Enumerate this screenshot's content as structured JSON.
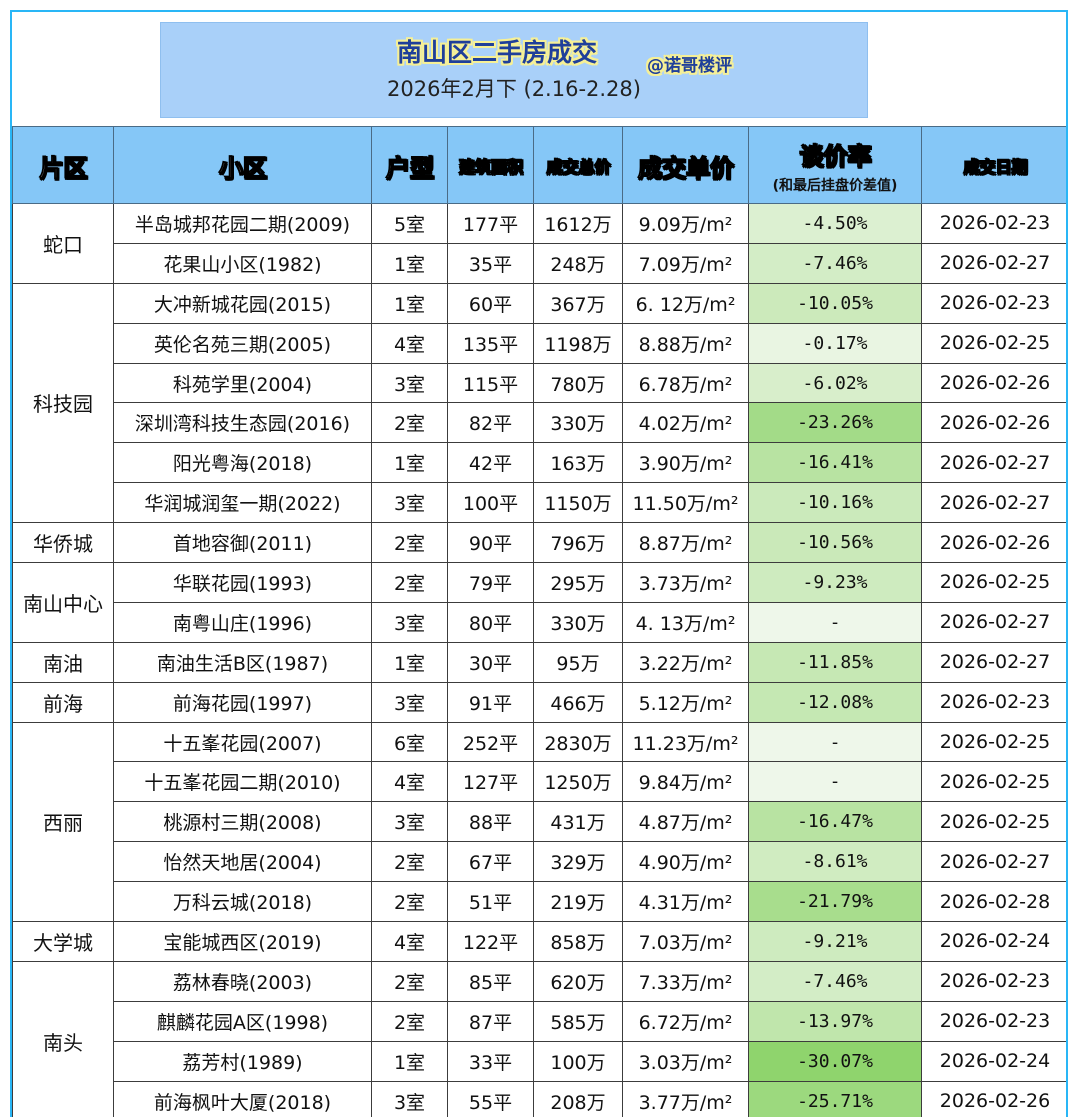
{
  "header": {
    "title": "南山区二手房成交",
    "author": "@诺哥楼评",
    "subtitle": "2026年2月下 (2.16-2.28)"
  },
  "columns": {
    "area": "片区",
    "community": "小区",
    "layout": "户型",
    "size": "建筑面积",
    "total": "成交总价",
    "unit_price": "成交单价",
    "rate": "谈价率",
    "rate_note": "(和最后挂盘价差值)",
    "date": "成交日期"
  },
  "groups": [
    {
      "area": "蛇口",
      "rows": [
        {
          "community": "半岛城邦花园二期(2009)",
          "layout": "5室",
          "size": "177平",
          "total": "1612万",
          "unit_price": "9.09万/m²",
          "rate": "-4.50%",
          "rate_value": -4.5,
          "date": "2026-02-23"
        },
        {
          "community": "花果山小区(1982)",
          "layout": "1室",
          "size": "35平",
          "total": "248万",
          "unit_price": "7.09万/m²",
          "rate": "-7.46%",
          "rate_value": -7.46,
          "date": "2026-02-27"
        }
      ]
    },
    {
      "area": "科技园",
      "rows": [
        {
          "community": "大冲新城花园(2015)",
          "layout": "1室",
          "size": "60平",
          "total": "367万",
          "unit_price": "6. 12万/m²",
          "rate": "-10.05%",
          "rate_value": -10.05,
          "date": "2026-02-23"
        },
        {
          "community": "英伦名苑三期(2005)",
          "layout": "4室",
          "size": "135平",
          "total": "1198万",
          "unit_price": "8.88万/m²",
          "rate": "-0.17%",
          "rate_value": -0.17,
          "date": "2026-02-25"
        },
        {
          "community": "科苑学里(2004)",
          "layout": "3室",
          "size": "115平",
          "total": "780万",
          "unit_price": "6.78万/m²",
          "rate": "-6.02%",
          "rate_value": -6.02,
          "date": "2026-02-26"
        },
        {
          "community": "深圳湾科技生态园(2016)",
          "layout": "2室",
          "size": "82平",
          "total": "330万",
          "unit_price": "4.02万/m²",
          "rate": "-23.26%",
          "rate_value": -23.26,
          "date": "2026-02-26"
        },
        {
          "community": "阳光粤海(2018)",
          "layout": "1室",
          "size": "42平",
          "total": "163万",
          "unit_price": "3.90万/m²",
          "rate": "-16.41%",
          "rate_value": -16.41,
          "date": "2026-02-27"
        },
        {
          "community": "华润城润玺一期(2022)",
          "layout": "3室",
          "size": "100平",
          "total": "1150万",
          "unit_price": "11.50万/m²",
          "rate": "-10.16%",
          "rate_value": -10.16,
          "date": "2026-02-27"
        }
      ]
    },
    {
      "area": "华侨城",
      "rows": [
        {
          "community": "首地容御(2011)",
          "layout": "2室",
          "size": "90平",
          "total": "796万",
          "unit_price": "8.87万/m²",
          "rate": "-10.56%",
          "rate_value": -10.56,
          "date": "2026-02-26"
        }
      ]
    },
    {
      "area": "南山中心",
      "rows": [
        {
          "community": "华联花园(1993)",
          "layout": "2室",
          "size": "79平",
          "total": "295万",
          "unit_price": "3.73万/m²",
          "rate": "-9.23%",
          "rate_value": -9.23,
          "date": "2026-02-25"
        },
        {
          "community": "南粤山庄(1996)",
          "layout": "3室",
          "size": "80平",
          "total": "330万",
          "unit_price": "4. 13万/m²",
          "rate": "-",
          "rate_value": null,
          "date": "2026-02-27"
        }
      ]
    },
    {
      "area": "南油",
      "rows": [
        {
          "community": "南油生活B区(1987)",
          "layout": "1室",
          "size": "30平",
          "total": "95万",
          "unit_price": "3.22万/m²",
          "rate": "-11.85%",
          "rate_value": -11.85,
          "date": "2026-02-27"
        }
      ]
    },
    {
      "area": "前海",
      "rows": [
        {
          "community": "前海花园(1997)",
          "layout": "3室",
          "size": "91平",
          "total": "466万",
          "unit_price": "5.12万/m²",
          "rate": "-12.08%",
          "rate_value": -12.08,
          "date": "2026-02-23"
        }
      ]
    },
    {
      "area": "西丽",
      "rows": [
        {
          "community": "十五峯花园(2007)",
          "layout": "6室",
          "size": "252平",
          "total": "2830万",
          "unit_price": "11.23万/m²",
          "rate": "-",
          "rate_value": null,
          "date": "2026-02-25"
        },
        {
          "community": "十五峯花园二期(2010)",
          "layout": "4室",
          "size": "127平",
          "total": "1250万",
          "unit_price": "9.84万/m²",
          "rate": "-",
          "rate_value": null,
          "date": "2026-02-25"
        },
        {
          "community": "桃源村三期(2008)",
          "layout": "3室",
          "size": "88平",
          "total": "431万",
          "unit_price": "4.87万/m²",
          "rate": "-16.47%",
          "rate_value": -16.47,
          "date": "2026-02-25"
        },
        {
          "community": "怡然天地居(2004)",
          "layout": "2室",
          "size": "67平",
          "total": "329万",
          "unit_price": "4.90万/m²",
          "rate": "-8.61%",
          "rate_value": -8.61,
          "date": "2026-02-27"
        },
        {
          "community": "万科云城(2018)",
          "layout": "2室",
          "size": "51平",
          "total": "219万",
          "unit_price": "4.31万/m²",
          "rate": "-21.79%",
          "rate_value": -21.79,
          "date": "2026-02-28"
        }
      ]
    },
    {
      "area": "大学城",
      "rows": [
        {
          "community": "宝能城西区(2019)",
          "layout": "4室",
          "size": "122平",
          "total": "858万",
          "unit_price": "7.03万/m²",
          "rate": "-9.21%",
          "rate_value": -9.21,
          "date": "2026-02-24"
        }
      ]
    },
    {
      "area": "南头",
      "rows": [
        {
          "community": "荔林春晓(2003)",
          "layout": "2室",
          "size": "85平",
          "total": "620万",
          "unit_price": "7.33万/m²",
          "rate": "-7.46%",
          "rate_value": -7.46,
          "date": "2026-02-23"
        },
        {
          "community": "麒麟花园A区(1998)",
          "layout": "2室",
          "size": "87平",
          "total": "585万",
          "unit_price": "6.72万/m²",
          "rate": "-13.97%",
          "rate_value": -13.97,
          "date": "2026-02-23"
        },
        {
          "community": "荔芳村(1989)",
          "layout": "1室",
          "size": "33平",
          "total": "100万",
          "unit_price": "3.03万/m²",
          "rate": "-30.07%",
          "rate_value": -30.07,
          "date": "2026-02-24"
        },
        {
          "community": "前海枫叶大厦(2018)",
          "layout": "3室",
          "size": "55平",
          "total": "208万",
          "unit_price": "3.77万/m²",
          "rate": "-25.71%",
          "rate_value": -25.71,
          "date": "2026-02-26"
        }
      ]
    }
  ],
  "colors": {
    "border_frame": "#29b6f6",
    "title_bg": "#a9d0f9",
    "header_bg": "#85c7f7",
    "rate_light": "#eaf5e3",
    "rate_dark": "#8fd46d",
    "rate_empty": "#eef7ea"
  }
}
